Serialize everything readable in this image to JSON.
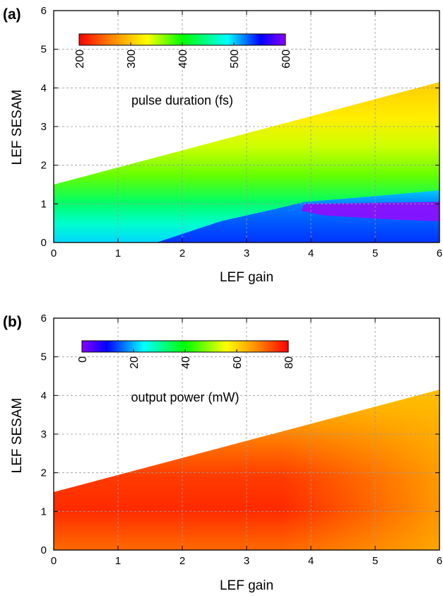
{
  "chart_data": [
    {
      "type": "heatmap",
      "panel_label": "(a)",
      "xlabel": "LEF gain",
      "ylabel": "LEF SESAM",
      "xlim": [
        0,
        6
      ],
      "ylim": [
        0,
        6
      ],
      "x_ticks": [
        "0",
        "1",
        "2",
        "3",
        "4",
        "5",
        "6"
      ],
      "y_ticks": [
        "0",
        "1",
        "2",
        "3",
        "4",
        "5",
        "6"
      ],
      "grid": true,
      "region_boundary": {
        "x": [
          0,
          6
        ],
        "y": [
          1.5,
          4.15
        ]
      },
      "colorbar": {
        "label": "pulse duration (fs)",
        "range": [
          200,
          600
        ],
        "ticks": [
          "200",
          "300",
          "400",
          "500",
          "600"
        ],
        "colors": [
          "#ff0000",
          "#ff8800",
          "#ffff00",
          "#00ff00",
          "#00ffff",
          "#0000ff",
          "#8800ff"
        ]
      }
    },
    {
      "type": "heatmap",
      "panel_label": "(b)",
      "xlabel": "LEF gain",
      "ylabel": "LEF SESAM",
      "xlim": [
        0,
        6
      ],
      "ylim": [
        0,
        6
      ],
      "x_ticks": [
        "0",
        "1",
        "2",
        "3",
        "4",
        "5",
        "6"
      ],
      "y_ticks": [
        "0",
        "1",
        "2",
        "3",
        "4",
        "5",
        "6"
      ],
      "grid": true,
      "region_boundary": {
        "x": [
          0,
          6
        ],
        "y": [
          1.5,
          4.15
        ]
      },
      "colorbar": {
        "label": "output power (mW)",
        "range": [
          0,
          80
        ],
        "ticks": [
          "0",
          "20",
          "40",
          "60",
          "80"
        ],
        "colors": [
          "#8800ff",
          "#0000ff",
          "#00ffff",
          "#00ff00",
          "#ffff00",
          "#ff8800",
          "#ff0000"
        ]
      }
    }
  ]
}
